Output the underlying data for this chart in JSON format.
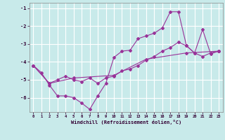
{
  "xlabel": "Windchill (Refroidissement éolien,°C)",
  "background_color": "#c8eaea",
  "grid_color": "#ffffff",
  "line_color": "#993399",
  "xlim": [
    -0.5,
    23.5
  ],
  "ylim": [
    -6.8,
    -0.7
  ],
  "yticks": [
    -6,
    -5,
    -4,
    -3,
    -2,
    -1
  ],
  "xticks": [
    0,
    1,
    2,
    3,
    4,
    5,
    6,
    7,
    8,
    9,
    10,
    11,
    12,
    13,
    14,
    15,
    16,
    17,
    18,
    19,
    20,
    21,
    22,
    23
  ],
  "s1_x": [
    0,
    1,
    2,
    3,
    4,
    5,
    6,
    7,
    8,
    9,
    10,
    11,
    12,
    13,
    14,
    15,
    16,
    17,
    18,
    19,
    20,
    21,
    22,
    23
  ],
  "s1_y": [
    -4.2,
    -4.6,
    -5.3,
    -5.9,
    -5.9,
    -6.0,
    -6.3,
    -6.65,
    -5.9,
    -5.2,
    -3.75,
    -3.4,
    -3.35,
    -2.7,
    -2.55,
    -2.4,
    -2.1,
    -1.2,
    -1.2,
    -3.1,
    -3.5,
    -2.2,
    -3.55,
    -3.4
  ],
  "s2_x": [
    0,
    2,
    3,
    4,
    5,
    6,
    7,
    8,
    9,
    10,
    11,
    12,
    13,
    14,
    15,
    16,
    17,
    18,
    19,
    20,
    21,
    22,
    23
  ],
  "s2_y": [
    -4.2,
    -5.2,
    -5.0,
    -4.8,
    -5.0,
    -5.1,
    -4.9,
    -5.2,
    -4.9,
    -4.8,
    -4.5,
    -4.4,
    -4.2,
    -3.9,
    -3.7,
    -3.4,
    -3.2,
    -2.9,
    -3.1,
    -3.5,
    -3.7,
    -3.5,
    -3.4
  ],
  "s3_x": [
    0,
    2,
    5,
    10,
    14,
    19,
    23
  ],
  "s3_y": [
    -4.2,
    -5.2,
    -4.9,
    -4.75,
    -3.85,
    -3.5,
    -3.4
  ],
  "spine_color": "#888888",
  "tick_color": "#330033",
  "label_color": "#330033"
}
